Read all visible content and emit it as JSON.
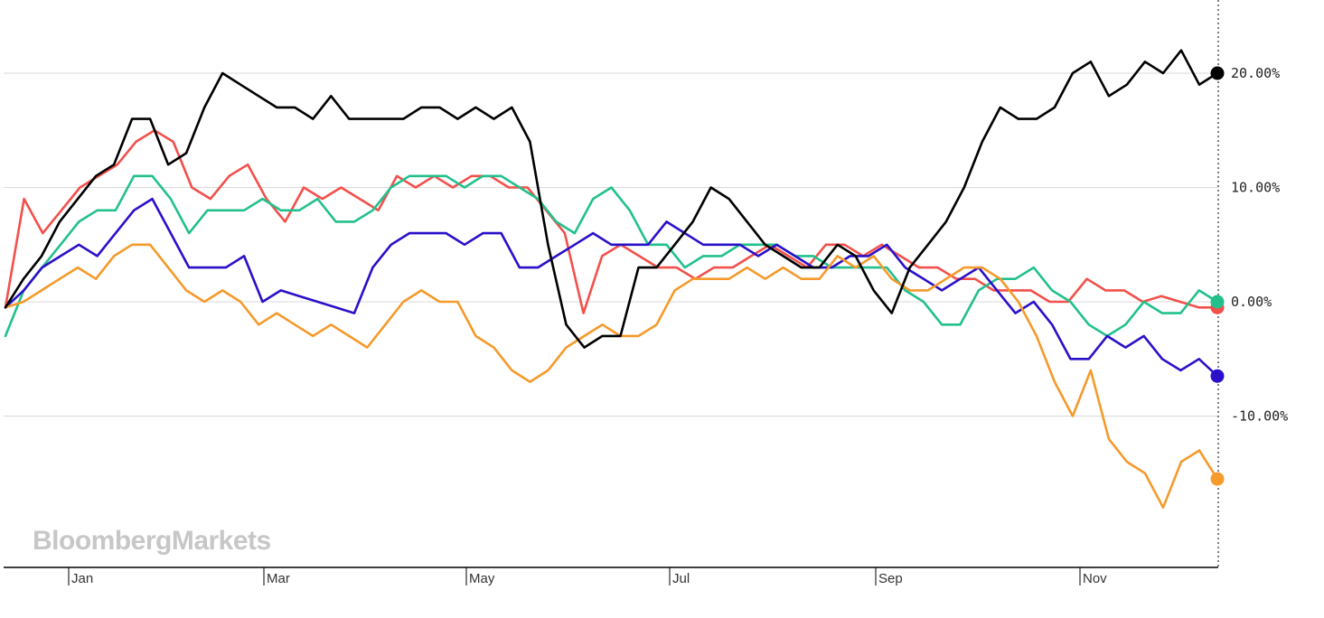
{
  "watermark": "BloombergMarkets",
  "chart_data": {
    "type": "line",
    "title": "",
    "xlabel": "",
    "ylabel": "",
    "x_ticks": [
      "Jan",
      "Mar",
      "May",
      "Jul",
      "Sep",
      "Nov"
    ],
    "y_ticks": [
      {
        "value": 20,
        "label": "20.00%"
      },
      {
        "value": 10,
        "label": "10.00%"
      },
      {
        "value": 0,
        "label": "0.00%"
      },
      {
        "value": -10,
        "label": "-10.00%"
      }
    ],
    "ylim": [
      -23,
      26
    ],
    "grid": true,
    "legend": "none",
    "end_markers": true,
    "series": [
      {
        "color": "#f2504b",
        "values": [
          -0.5,
          9,
          6,
          8,
          10,
          11,
          12,
          14,
          15,
          14,
          10,
          9,
          11,
          12,
          9,
          7,
          10,
          9,
          10,
          9,
          8,
          11,
          10,
          11,
          10,
          11,
          11,
          10,
          10,
          8,
          6,
          -1,
          4,
          5,
          4,
          3,
          3,
          2,
          3,
          3,
          4,
          5,
          4,
          3,
          5,
          5,
          4,
          5,
          4,
          3,
          3,
          2,
          2,
          1,
          1,
          1,
          0,
          0,
          2,
          1,
          1,
          0,
          0.5,
          0,
          -0.5,
          -0.5
        ]
      },
      {
        "color": "#22c08d",
        "values": [
          -3,
          1,
          3,
          5,
          7,
          8,
          8,
          11,
          11,
          9,
          6,
          8,
          8,
          8,
          9,
          8,
          8,
          9,
          7,
          7,
          8,
          10,
          11,
          11,
          11,
          10,
          11,
          11,
          10,
          9,
          7,
          6,
          9,
          10,
          8,
          5,
          5,
          3,
          4,
          4,
          5,
          5,
          5,
          4,
          4,
          3,
          3,
          3,
          3,
          1,
          0,
          -2,
          -2,
          1,
          2,
          2,
          3,
          1,
          0,
          -2,
          -3,
          -2,
          0,
          -1,
          -1,
          1,
          0
        ]
      },
      {
        "color": "#2a10c9",
        "values": [
          -0.5,
          1,
          3,
          4,
          5,
          4,
          6,
          8,
          9,
          6,
          3,
          3,
          3,
          4,
          0,
          1,
          0.5,
          0,
          -0.5,
          -1,
          3,
          5,
          6,
          6,
          6,
          5,
          6,
          6,
          3,
          3,
          4,
          5,
          6,
          5,
          5,
          5,
          7,
          6,
          5,
          5,
          5,
          4,
          5,
          4,
          3,
          3,
          4,
          4,
          5,
          3,
          2,
          1,
          2,
          3,
          1,
          -1,
          0,
          -2,
          -5,
          -5,
          -3,
          -4,
          -3,
          -5,
          -6,
          -5,
          -6.5
        ]
      },
      {
        "color": "#f59a2b",
        "values": [
          -0.5,
          0,
          1,
          2,
          3,
          2,
          4,
          5,
          5,
          3,
          1,
          0,
          1,
          0,
          -2,
          -1,
          -2,
          -3,
          -2,
          -3,
          -4,
          -2,
          0,
          1,
          0,
          0,
          -3,
          -4,
          -6,
          -7,
          -6,
          -4,
          -3,
          -2,
          -3,
          -3,
          -2,
          1,
          2,
          2,
          2,
          3,
          2,
          3,
          2,
          2,
          4,
          3,
          4,
          2,
          1,
          1,
          2,
          3,
          3,
          2,
          0,
          -3,
          -7,
          -10,
          -6,
          -12,
          -14,
          -15,
          -18,
          -14,
          -13,
          -15.5
        ]
      },
      {
        "color": "#000000",
        "values": [
          -0.5,
          2,
          4,
          7,
          9,
          11,
          12,
          16,
          16,
          12,
          13,
          17,
          20,
          19,
          18,
          17,
          17,
          16,
          18,
          16,
          16,
          16,
          16,
          17,
          17,
          16,
          17,
          16,
          17,
          14,
          5,
          -2,
          -4,
          -3,
          -3,
          3,
          3,
          5,
          7,
          10,
          9,
          7,
          5,
          4,
          3,
          3,
          5,
          4,
          1,
          -1,
          3,
          5,
          7,
          10,
          14,
          17,
          16,
          16,
          17,
          20,
          21,
          18,
          19,
          21,
          20,
          22,
          19,
          20
        ]
      }
    ]
  }
}
